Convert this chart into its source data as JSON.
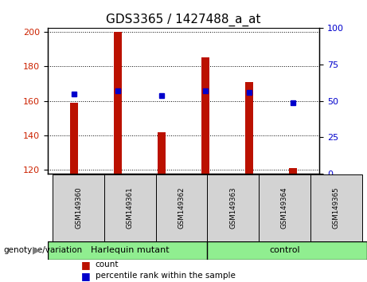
{
  "title": "GDS3365 / 1427488_a_at",
  "samples": [
    "GSM149360",
    "GSM149361",
    "GSM149362",
    "GSM149363",
    "GSM149364",
    "GSM149365"
  ],
  "counts": [
    159,
    200,
    142,
    185,
    171,
    121
  ],
  "percentile_left_axis": [
    164,
    166,
    163,
    166,
    165,
    159
  ],
  "ylim_left": [
    118,
    202
  ],
  "ylim_right": [
    0,
    100
  ],
  "yticks_left": [
    120,
    140,
    160,
    180,
    200
  ],
  "yticks_right": [
    0,
    25,
    50,
    75,
    100
  ],
  "bar_color": "#bb1100",
  "dot_color": "#0000cc",
  "bar_width": 0.18,
  "group_label": "genotype/variation",
  "ylabel_left_color": "#cc2200",
  "ylabel_right_color": "#0000cc",
  "title_fontsize": 11,
  "background_color": "#ffffff",
  "legend_count_label": "count",
  "legend_pct_label": "percentile rank within the sample",
  "hm_label": "Harlequin mutant",
  "ctrl_label": "control",
  "group_bg": "#90ee90",
  "sample_bg": "#d3d3d3"
}
